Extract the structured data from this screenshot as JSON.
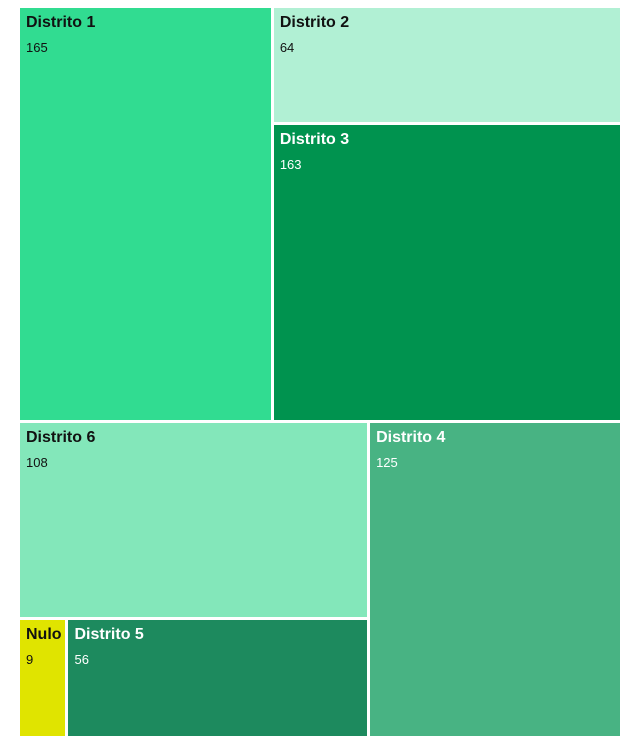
{
  "chart_data": {
    "type": "treemap",
    "title": "",
    "items": [
      {
        "name": "Distrito 1",
        "value": 165,
        "color": "#31DC91",
        "text_color": "#111111"
      },
      {
        "name": "Distrito 2",
        "value": 64,
        "color": "#B1F0D4",
        "text_color": "#111111"
      },
      {
        "name": "Distrito 3",
        "value": 163,
        "color": "#00934F",
        "text_color": "#ffffff"
      },
      {
        "name": "Distrito 6",
        "value": 108,
        "color": "#83E7BA",
        "text_color": "#111111"
      },
      {
        "name": "Distrito 4",
        "value": 125,
        "color": "#48B383",
        "text_color": "#ffffff"
      },
      {
        "name": "Nulo",
        "value": 9,
        "color": "#E0E400",
        "text_color": "#111111"
      },
      {
        "name": "Distrito 5",
        "value": 56,
        "color": "#1D8A5E",
        "text_color": "#ffffff"
      }
    ]
  }
}
